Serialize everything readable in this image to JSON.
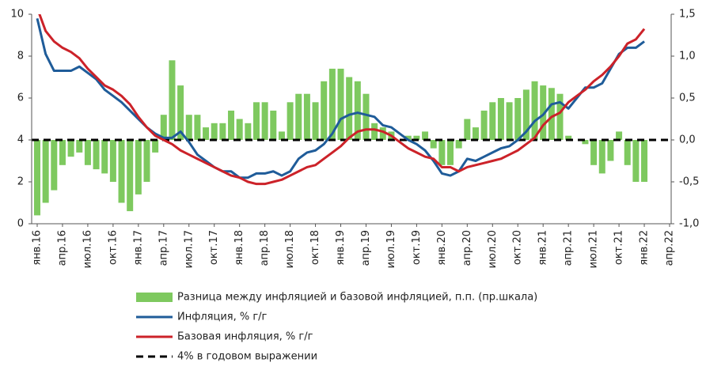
{
  "chart_data": {
    "type": "combo",
    "categories": [
      "янв.16",
      null,
      null,
      "апр.16",
      null,
      null,
      "июл.16",
      null,
      null,
      "окт.16",
      null,
      null,
      "янв.17",
      null,
      null,
      "апр.17",
      null,
      null,
      "июл.17",
      null,
      null,
      "окт.17",
      null,
      null,
      "янв.18",
      null,
      null,
      "апр.18",
      null,
      null,
      "июл.18",
      null,
      null,
      "окт.18",
      null,
      null,
      "янв.19",
      null,
      null,
      "апр.19",
      null,
      null,
      "июл.19",
      null,
      null,
      "окт.19",
      null,
      null,
      "янв.20",
      null,
      null,
      "апр.20",
      null,
      null,
      "июл.20",
      null,
      null,
      "окт.20",
      null,
      null,
      "янв.21",
      null,
      null,
      "апр.21",
      null,
      null,
      "июл.21",
      null,
      null,
      "окт.21",
      null,
      null,
      "янв.22",
      null,
      null,
      "апр.22"
    ],
    "series": [
      {
        "name": "Разница между инфляцией и базовой инфляцией, п.п. (пр.шкала)",
        "type": "bar",
        "axis": "y2",
        "color": "#7ec95f",
        "values": [
          -0.9,
          -0.75,
          -0.6,
          -0.3,
          -0.2,
          -0.15,
          -0.3,
          -0.35,
          -0.4,
          -0.5,
          -0.75,
          -0.85,
          -0.65,
          -0.5,
          -0.15,
          0.3,
          0.95,
          0.65,
          0.3,
          0.3,
          0.15,
          0.2,
          0.2,
          0.35,
          0.25,
          0.2,
          0.45,
          0.45,
          0.35,
          0.1,
          0.45,
          0.55,
          0.55,
          0.45,
          0.7,
          0.85,
          0.85,
          0.75,
          0.7,
          0.55,
          0.2,
          0.15,
          0.1,
          0.0,
          0.05,
          0.05,
          0.1,
          -0.1,
          -0.3,
          -0.3,
          -0.1,
          0.25,
          0.15,
          0.35,
          0.45,
          0.5,
          0.45,
          0.5,
          0.6,
          0.7,
          0.65,
          0.62,
          0.55,
          0.05,
          0.0,
          -0.05,
          -0.3,
          -0.4,
          -0.25,
          0.1,
          -0.3,
          -0.5,
          -0.5,
          null,
          null,
          null
        ]
      },
      {
        "name": "Инфляция, % г/г",
        "type": "line",
        "color": "#1f5c99",
        "values": [
          9.8,
          8.1,
          7.3,
          7.3,
          7.3,
          7.5,
          7.2,
          6.9,
          6.4,
          6.1,
          5.8,
          5.4,
          5.0,
          4.6,
          4.3,
          4.1,
          4.1,
          4.4,
          3.9,
          3.3,
          3.0,
          2.7,
          2.5,
          2.5,
          2.2,
          2.2,
          2.4,
          2.4,
          2.5,
          2.3,
          2.5,
          3.1,
          3.4,
          3.5,
          3.8,
          4.3,
          5.0,
          5.2,
          5.3,
          5.2,
          5.1,
          4.7,
          4.6,
          4.3,
          4.0,
          3.8,
          3.5,
          3.0,
          2.4,
          2.3,
          2.5,
          3.1,
          3.0,
          3.2,
          3.4,
          3.6,
          3.7,
          4.0,
          4.4,
          4.9,
          5.2,
          5.7,
          5.8,
          5.5,
          6.0,
          6.5,
          6.5,
          6.7,
          7.4,
          8.1,
          8.4,
          8.4,
          8.7,
          null,
          null,
          null
        ]
      },
      {
        "name": "Базовая инфляция, % г/г",
        "type": "line",
        "color": "#cc2229",
        "values": [
          10.3,
          9.2,
          8.7,
          8.4,
          8.2,
          7.9,
          7.4,
          7.0,
          6.6,
          6.4,
          6.1,
          5.7,
          5.1,
          4.6,
          4.2,
          4.0,
          3.8,
          3.5,
          3.3,
          3.1,
          2.9,
          2.7,
          2.5,
          2.3,
          2.2,
          2.0,
          1.9,
          1.9,
          2.0,
          2.1,
          2.3,
          2.5,
          2.7,
          2.8,
          3.1,
          3.4,
          3.7,
          4.1,
          4.4,
          4.5,
          4.5,
          4.4,
          4.2,
          3.9,
          3.6,
          3.4,
          3.2,
          3.1,
          2.7,
          2.7,
          2.5,
          2.7,
          2.8,
          2.9,
          3.0,
          3.1,
          3.3,
          3.5,
          3.8,
          4.1,
          4.7,
          5.1,
          5.3,
          5.8,
          6.1,
          6.4,
          6.8,
          7.1,
          7.5,
          8.0,
          8.6,
          8.8,
          9.3,
          null,
          null,
          null
        ]
      }
    ],
    "reference_line": {
      "name": "4% в годовом выражении",
      "value": 4,
      "color": "#000000"
    },
    "ylim": [
      0,
      10
    ],
    "yticks": [
      0,
      2,
      4,
      6,
      8,
      10
    ],
    "y2lim": [
      -1.0,
      1.5
    ],
    "y2ticks": [
      {
        "value": -1.0,
        "label": "-1,0"
      },
      {
        "value": -0.5,
        "label": "-0,5"
      },
      {
        "value": 0,
        "label": "0,0"
      },
      {
        "value": 0.5,
        "label": "0,5"
      },
      {
        "value": 1.0,
        "label": "1,0"
      },
      {
        "value": 1.5,
        "label": "1,5"
      }
    ]
  }
}
